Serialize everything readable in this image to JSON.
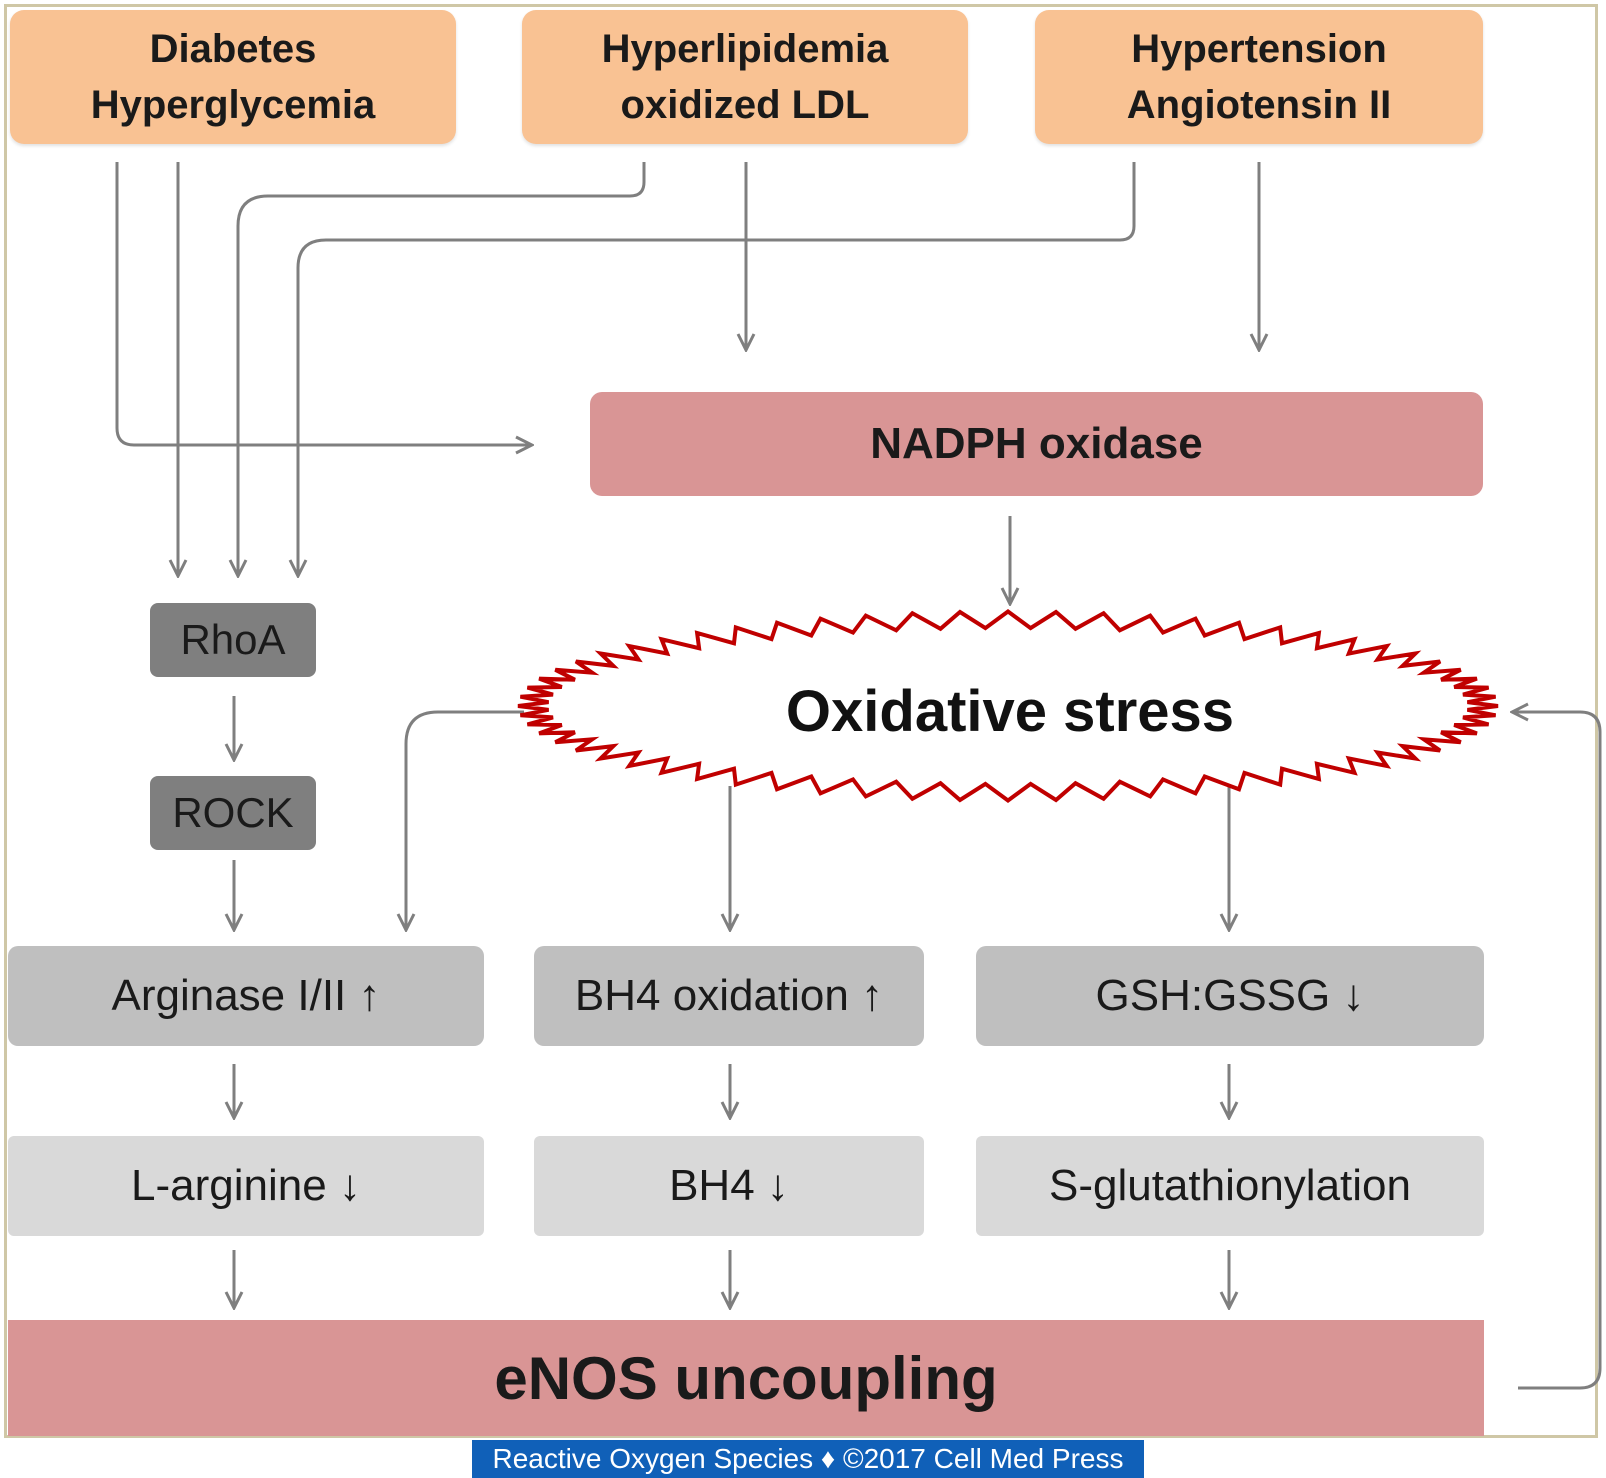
{
  "risk_factors": [
    {
      "line1": "Diabetes",
      "line2": "Hyperglycemia"
    },
    {
      "line1": "Hyperlipidemia",
      "line2": "oxidized LDL"
    },
    {
      "line1": "Hypertension",
      "line2": "Angiotensin II"
    }
  ],
  "nadph": "NADPH oxidase",
  "oxidative_stress": "Oxidative stress",
  "rhoa": "RhoA",
  "rock": "ROCK",
  "middle_row": [
    "Arginase I/II ↑",
    "BH4 oxidation ↑",
    "GSH:GSSG ↓"
  ],
  "lower_row": [
    "L-arginine ↓",
    "BH4 ↓",
    "S-glutathionylation"
  ],
  "enos": "eNOS uncoupling",
  "footer": "Reactive Oxygen Species ♦ ©2017 Cell Med Press",
  "colors": {
    "risk_fill": "#f9c293",
    "enzyme_fill": "#d99595",
    "dark_box": "#7f7f7f",
    "mid_box": "#bfbfbf",
    "light_box": "#d9d9d9",
    "burst_outline": "#c00000",
    "arrow": "#7f7f7f",
    "footer_bg": "#1060b8"
  }
}
